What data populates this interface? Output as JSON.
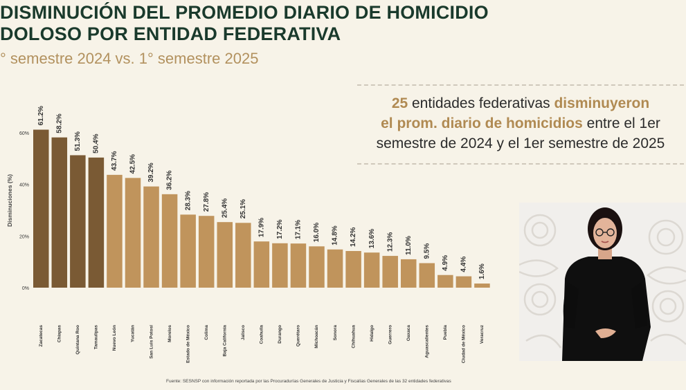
{
  "title_lines": [
    "DISMINUCIÓN DEL PROMEDIO DIARIO DE HOMICIDIO",
    "DOLOSO POR ENTIDAD FEDERATIVA"
  ],
  "subtitle": "° semestre 2024 vs. 1° semestre 2025",
  "callout": {
    "line1_num": "25",
    "line1_text": " entidades federativas ",
    "line1_hl": "disminuyeron",
    "line2_hl": "el prom. diario de homicidios",
    "line2_text": " entre el 1er",
    "line3": "semestre de 2024 y el 1er semestre de 2025"
  },
  "source": "Fuente: SESNSP con información reportada por las Procuradurías Generales de Justicia y Fiscalías Generales de las 32 entidades federativas",
  "colors": {
    "title": "#1a3a2c",
    "accent": "#b08a52",
    "bar_dark": "#7a5a34",
    "bar_light": "#c0945c",
    "background": "#f7f3e8"
  },
  "chart_data": {
    "type": "bar",
    "ylabel": "Disminuciones (%)",
    "ylim": [
      0,
      65
    ],
    "yticks": [
      0,
      20,
      40,
      60
    ],
    "ytick_labels": [
      "0%",
      "20%",
      "40%",
      "60%"
    ],
    "grid": false,
    "categories": [
      "Zacatecas",
      "Chiapas",
      "Quintana Roo",
      "Tamaulipas",
      "Nuevo León",
      "Yucatán",
      "San Luis Potosí",
      "Morelos",
      "Estado de México",
      "Colima",
      "Baja California",
      "Jalisco",
      "Coahuila",
      "Durango",
      "Querétaro",
      "Michoacán",
      "Sonora",
      "Chihuahua",
      "Hidalgo",
      "Guerrero",
      "Oaxaca",
      "Aguascalientes",
      "Puebla",
      "Ciudad de México",
      "Veracruz"
    ],
    "values": [
      61.2,
      58.2,
      51.3,
      50.4,
      43.7,
      42.5,
      39.2,
      36.2,
      28.3,
      27.8,
      25.4,
      25.1,
      17.9,
      17.2,
      17.1,
      16.0,
      14.8,
      14.2,
      13.6,
      12.3,
      11.0,
      9.5,
      4.9,
      4.4,
      1.6
    ],
    "labels": [
      "61.2%",
      "58.2%",
      "51.3%",
      "50.4%",
      "43.7%",
      "42.5%",
      "39.2%",
      "36.2%",
      "28.3%",
      "27.8%",
      "25.4%",
      "25.1%",
      "17.9%",
      "17.2%",
      "17.1%",
      "16.0%",
      "14.8%",
      "14.2%",
      "13.6%",
      "12.3%",
      "11.0%",
      "9.5%",
      "4.9%",
      "4.4%",
      "1.6%"
    ],
    "dark_bar_count": 4
  }
}
